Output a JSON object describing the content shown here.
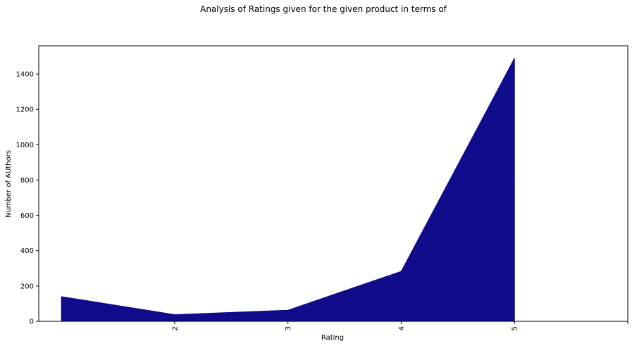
{
  "chart_data": {
    "type": "area",
    "title": "Analysis of Ratings given for the given product in terms of",
    "xlabel": "Rating",
    "ylabel": "Number of AUthors",
    "x": [
      1,
      2,
      3,
      4,
      5
    ],
    "series": [
      {
        "values": [
          140,
          38,
          63,
          283,
          1490
        ],
        "color": "#100b8a"
      }
    ],
    "x_ticks": [
      2,
      3,
      4,
      5
    ],
    "x_tick_labels": [
      "2",
      "3",
      "4",
      "5"
    ],
    "xlim": [
      0.8,
      6.0
    ],
    "y_ticks": [
      0,
      200,
      400,
      600,
      800,
      1000,
      1200,
      1400
    ],
    "y_tick_labels": [
      "0",
      "200",
      "400",
      "600",
      "800",
      "1000",
      "1200",
      "1400"
    ],
    "ylim": [
      0,
      1560
    ],
    "x_tick_label_rotation": "vertical",
    "grid": false,
    "legend": "none"
  }
}
